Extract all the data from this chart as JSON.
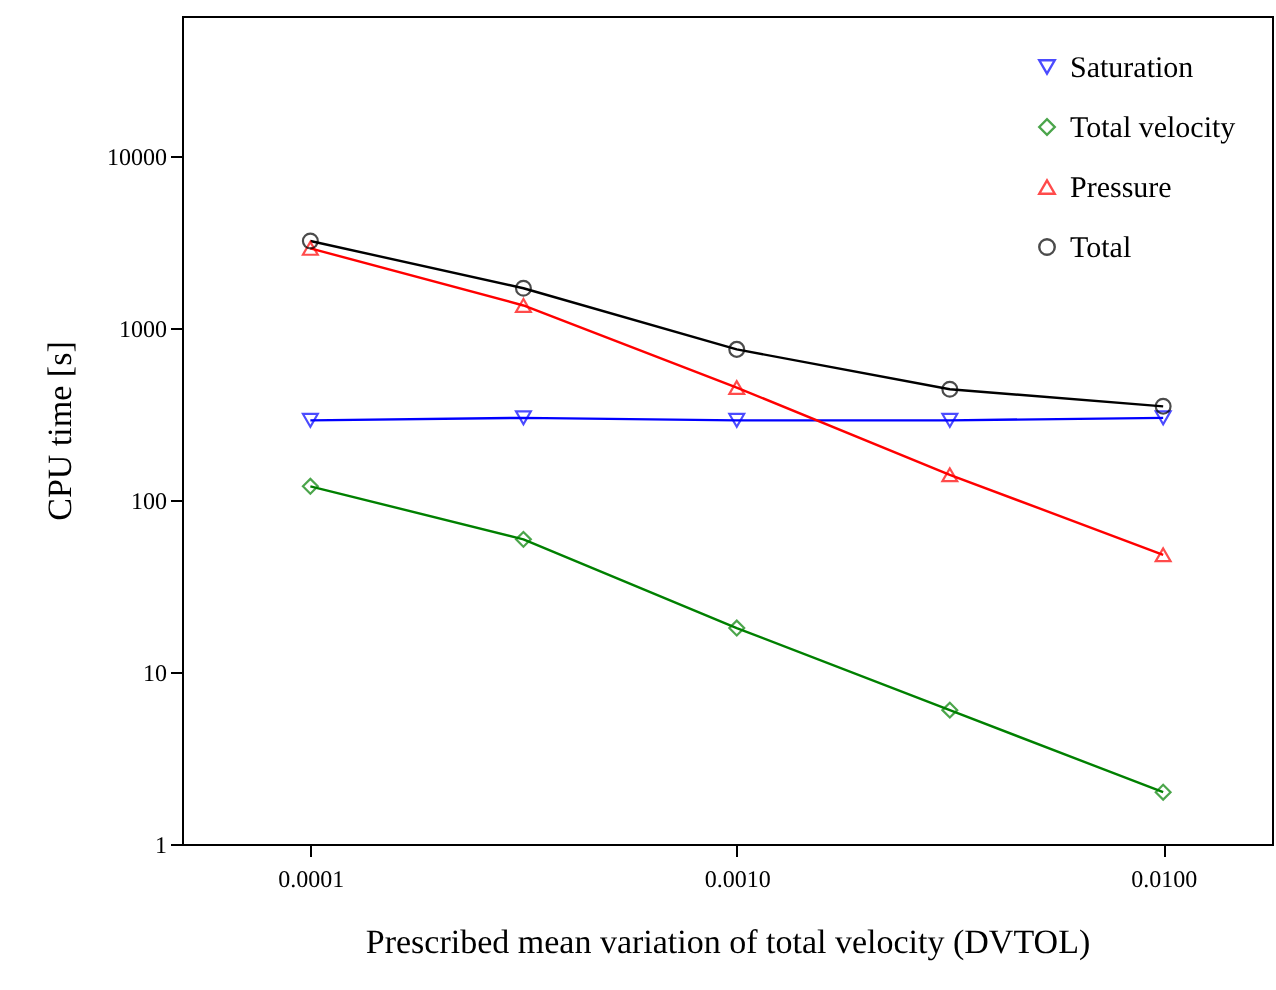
{
  "chart_data": {
    "type": "line",
    "xlabel": "Prescribed mean variation of total velocity (DVTOL)",
    "ylabel": "CPU time [s]",
    "x": [
      0.0001,
      0.000316,
      0.001,
      0.00316,
      0.01
    ],
    "series": [
      {
        "name": "Saturation",
        "color": "#0000ff",
        "marker": "triangle-down",
        "values": [
          290,
          300,
          290,
          290,
          300
        ]
      },
      {
        "name": "Total velocity",
        "color": "#008000",
        "marker": "diamond",
        "values": [
          120,
          59,
          18,
          6,
          2
        ]
      },
      {
        "name": "Pressure",
        "color": "#ff0000",
        "marker": "triangle",
        "values": [
          2900,
          1350,
          450,
          140,
          48
        ]
      },
      {
        "name": "Total",
        "color": "#000000",
        "marker": "circle",
        "values": [
          3200,
          1700,
          750,
          440,
          350
        ]
      }
    ],
    "log": "xy",
    "xlim": [
      5e-05,
      0.018
    ],
    "ylim": [
      1,
      65000
    ],
    "xticks": [
      {
        "value": 0.0001,
        "label": "0.0001"
      },
      {
        "value": 0.001,
        "label": "0.0010"
      },
      {
        "value": 0.01,
        "label": "0.0100"
      }
    ],
    "yticks": [
      1,
      10,
      100,
      1000,
      10000
    ],
    "grid": false,
    "legend": "top right",
    "line_style": "solid"
  }
}
